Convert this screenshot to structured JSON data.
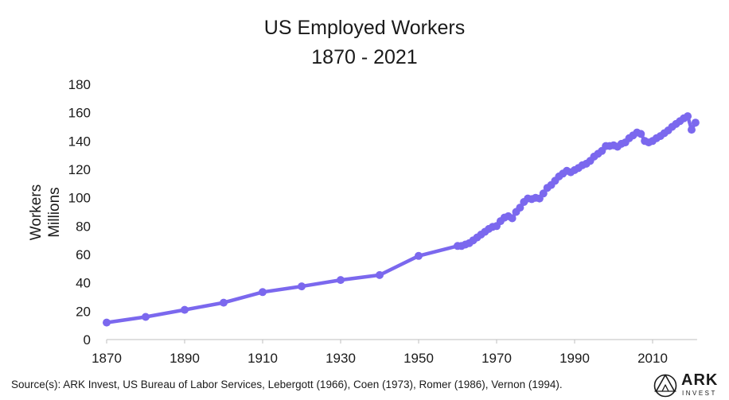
{
  "chart_data": {
    "type": "line",
    "title": "US Employed Workers",
    "subtitle": "1870 - 2021",
    "ylabel_line1": "Workers",
    "ylabel_line2": "Millions",
    "xlabel": "",
    "xlim": [
      1870,
      2021
    ],
    "ylim": [
      0,
      180
    ],
    "x_ticks": [
      "1870",
      "1890",
      "1910",
      "1930",
      "1950",
      "1970",
      "1990",
      "2010"
    ],
    "y_ticks": [
      "0",
      "20",
      "40",
      "60",
      "80",
      "100",
      "120",
      "140",
      "160",
      "180"
    ],
    "grid": false,
    "legend": "none",
    "color": "#7b68ee",
    "series": [
      {
        "x": [
          1870,
          1880,
          1890,
          1900,
          1910,
          1920,
          1930,
          1940,
          1950,
          1960,
          1961,
          1962,
          1963,
          1964,
          1965,
          1966,
          1967,
          1968,
          1969,
          1970,
          1971,
          1972,
          1973,
          1974,
          1975,
          1976,
          1977,
          1978,
          1979,
          1980,
          1981,
          1982,
          1983,
          1984,
          1985,
          1986,
          1987,
          1988,
          1989,
          1990,
          1991,
          1992,
          1993,
          1994,
          1995,
          1996,
          1997,
          1998,
          1999,
          2000,
          2001,
          2002,
          2003,
          2004,
          2005,
          2006,
          2007,
          2008,
          2009,
          2010,
          2011,
          2012,
          2013,
          2014,
          2015,
          2016,
          2017,
          2018,
          2019,
          2020,
          2021
        ],
        "values": [
          12,
          16,
          21,
          26,
          33.5,
          37.5,
          42,
          45.5,
          59,
          66,
          66,
          67,
          68,
          70,
          72,
          74,
          76,
          78,
          79.5,
          80,
          83.5,
          86,
          87,
          85.5,
          90,
          93,
          97,
          99.5,
          99,
          100,
          99.5,
          103,
          107,
          109,
          112,
          115,
          117,
          119,
          118,
          119.5,
          121,
          123,
          124,
          126,
          129,
          131,
          133,
          136.5,
          136.5,
          137,
          136,
          138,
          139,
          142,
          144,
          146,
          145,
          140,
          139,
          140,
          142,
          143.5,
          145.5,
          147.5,
          150,
          152,
          154,
          156,
          157.5,
          148,
          153
        ]
      }
    ]
  },
  "source": "Source(s): ARK Invest, US Bureau of Labor Services, Lebergott (1966), Coen (1973), Romer (1986), Vernon (1994).",
  "logo": {
    "word": "ARK",
    "sub": "INVEST"
  }
}
